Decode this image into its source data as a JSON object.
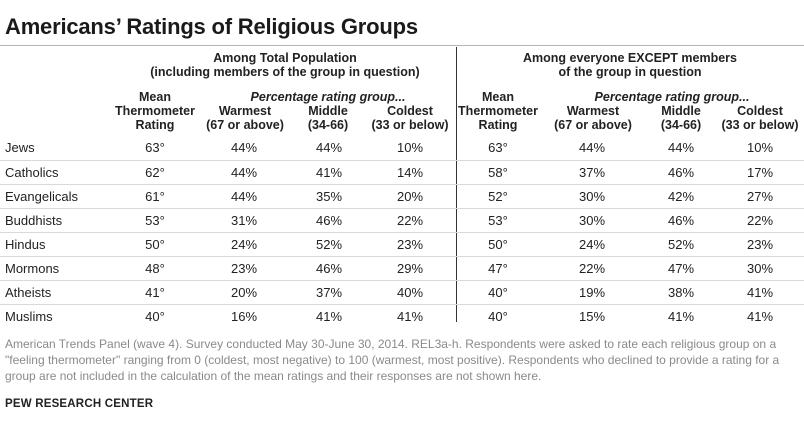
{
  "title": "Americans’ Ratings of Religious Groups",
  "groups": {
    "total_line1": "Among Total Population",
    "total_line2": "(including members of the group in question)",
    "except_line1": "Among everyone EXCEPT members",
    "except_line2": "of the group in question"
  },
  "headers": {
    "mean_line1": "Mean",
    "mean_line2": "Thermometer",
    "mean_line3": "Rating",
    "pct_group": "Percentage rating group...",
    "warmest": "Warmest",
    "warmest_sub": "(67 or above)",
    "middle": "Middle",
    "middle_sub": "(34-66)",
    "coldest": "Coldest",
    "coldest_sub": "(33 or below)"
  },
  "rows": [
    {
      "group": "Jews",
      "t_mean": "63°",
      "t_warm": "44%",
      "t_mid": "44%",
      "t_cold": "10%",
      "e_mean": "63°",
      "e_warm": "44%",
      "e_mid": "44%",
      "e_cold": "10%"
    },
    {
      "group": "Catholics",
      "t_mean": "62°",
      "t_warm": "44%",
      "t_mid": "41%",
      "t_cold": "14%",
      "e_mean": "58°",
      "e_warm": "37%",
      "e_mid": "46%",
      "e_cold": "17%"
    },
    {
      "group": "Evangelicals",
      "t_mean": "61°",
      "t_warm": "44%",
      "t_mid": "35%",
      "t_cold": "20%",
      "e_mean": "52°",
      "e_warm": "30%",
      "e_mid": "42%",
      "e_cold": "27%"
    },
    {
      "group": "Buddhists",
      "t_mean": "53°",
      "t_warm": "31%",
      "t_mid": "46%",
      "t_cold": "22%",
      "e_mean": "53°",
      "e_warm": "30%",
      "e_mid": "46%",
      "e_cold": "22%"
    },
    {
      "group": "Hindus",
      "t_mean": "50°",
      "t_warm": "24%",
      "t_mid": "52%",
      "t_cold": "23%",
      "e_mean": "50°",
      "e_warm": "24%",
      "e_mid": "52%",
      "e_cold": "23%"
    },
    {
      "group": "Mormons",
      "t_mean": "48°",
      "t_warm": "23%",
      "t_mid": "46%",
      "t_cold": "29%",
      "e_mean": "47°",
      "e_warm": "22%",
      "e_mid": "47%",
      "e_cold": "30%"
    },
    {
      "group": "Atheists",
      "t_mean": "41°",
      "t_warm": "20%",
      "t_mid": "37%",
      "t_cold": "40%",
      "e_mean": "40°",
      "e_warm": "19%",
      "e_mid": "38%",
      "e_cold": "41%"
    },
    {
      "group": "Muslims",
      "t_mean": "40°",
      "t_warm": "16%",
      "t_mid": "41%",
      "t_cold": "41%",
      "e_mean": "40°",
      "e_warm": "15%",
      "e_mid": "41%",
      "e_cold": "41%"
    }
  ],
  "notes": "American Trends Panel (wave 4). Survey conducted May 30-June 30, 2014. REL3a-h. Respondents were asked to rate each religious group on a \"feeling thermometer\" ranging from 0 (coldest, most negative) to 100 (warmest, most positive). Respondents who declined to provide a rating for a group are not included in the calculation of the mean ratings and their responses are not shown here.",
  "source": "PEW RESEARCH CENTER"
}
